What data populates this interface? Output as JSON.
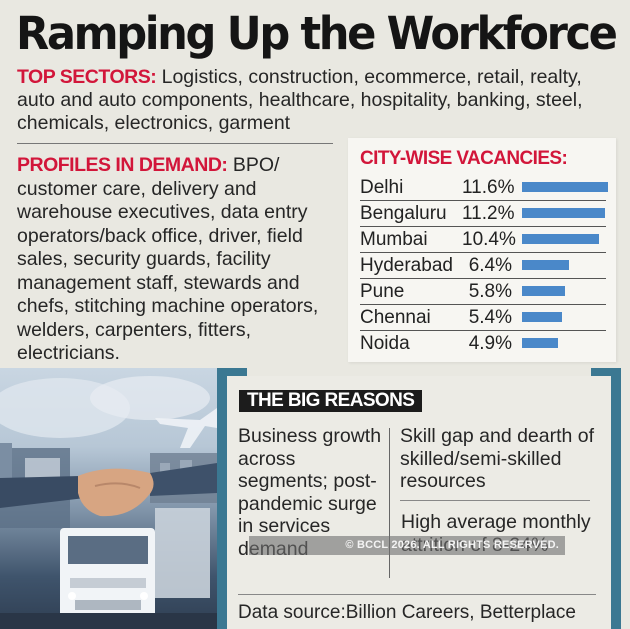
{
  "header": {
    "title": "Ramping Up the Workforce"
  },
  "top_sectors": {
    "label": "TOP SECTORS:",
    "text": " Logistics, construction, ecommerce, retail, realty, auto and auto components, healthcare, hospitality, banking, steel, chemicals, electronics, garment"
  },
  "profiles": {
    "label": "PROFILES IN DEMAND:",
    "text": " BPO/ customer care, delivery and warehouse executives, data entry operators/back office, driver, field sales, security guards, facility management staff, stewards and chefs, stitching machine operators, welders, carpenters, fitters, electricians."
  },
  "city_wise": {
    "title": "CITY-WISE VACANCIES:",
    "bar_color": "#4a88c9",
    "rows": [
      {
        "city": "Delhi",
        "value": "11.6%",
        "pct": 100
      },
      {
        "city": "Bengaluru",
        "value": "11.2%",
        "pct": 96.5
      },
      {
        "city": "Mumbai",
        "value": "10.4%",
        "pct": 89.6
      },
      {
        "city": "Hyderabad",
        "value": "6.4%",
        "pct": 55.2
      },
      {
        "city": "Pune",
        "value": "5.8%",
        "pct": 50
      },
      {
        "city": "Chennai",
        "value": "5.4%",
        "pct": 46.5
      },
      {
        "city": "Noida",
        "value": "4.9%",
        "pct": 42.2
      }
    ]
  },
  "chart_data": {
    "type": "bar",
    "title": "CITY-WISE VACANCIES:",
    "orientation": "horizontal",
    "categories": [
      "Delhi",
      "Bengaluru",
      "Mumbai",
      "Hyderabad",
      "Pune",
      "Chennai",
      "Noida"
    ],
    "values": [
      11.6,
      11.2,
      10.4,
      6.4,
      5.8,
      5.4,
      4.9
    ],
    "unit": "%",
    "xlabel": "",
    "ylabel": "",
    "grid": false,
    "legend": null
  },
  "big_reasons": {
    "badge": "THE BIG REASONS",
    "reason1": "Business growth across segments; post-pandemic surge in services demand",
    "reason2": "Skill gap and dearth of skilled/semi-skilled resources",
    "reason3": "High average monthly attrition of 8-24%",
    "source": "Data source:Billion Careers, Betterplace"
  },
  "watermark": "© BCCL 2026. ALL RIGHTS RESERVED.",
  "colors": {
    "accent_red": "#d2163a",
    "frame_teal": "#3b7892",
    "background": "#e9e8e1"
  }
}
